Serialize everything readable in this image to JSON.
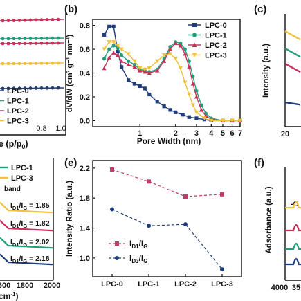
{
  "colors": {
    "lpc0": "#1f3c7a",
    "lpc1": "#1f9e7a",
    "lpc2": "#c8305a",
    "lpc3": "#f2c13b",
    "dash_pink": "#c23a6b",
    "dash_navy": "#1f3c7a"
  },
  "panel_a": {
    "x_axis_label": "e (p/p",
    "x_axis_label_sub": "0",
    "x_axis_label_close": ")",
    "x_ticks": [
      "0.8",
      "1.0"
    ],
    "legend": [
      "LPC-0",
      "LPC-1",
      "LPC-2",
      "LPC-3"
    ]
  },
  "panel_b": {
    "letter": "(b)",
    "x_axis_label": "Pore Width (nm)",
    "y_axis_label": "dV/dW (cm³ g⁻¹ nm⁻¹)",
    "legend": [
      "LPC-0",
      "LPC-1",
      "LPC-2",
      "LPC-3"
    ]
  },
  "panel_c": {
    "letter": "(c)",
    "y_axis_label": "Intensity (a.u.)",
    "x_ticks": [
      "20"
    ]
  },
  "panel_d": {
    "legend": [
      "LPC-1",
      "LPC-3"
    ],
    "band_label": "band",
    "x_axis_label": "cm",
    "x_axis_label_sup": "-1",
    "x_axis_label_close": ")",
    "x_ticks": [
      "600",
      "1800",
      "2000"
    ],
    "ratios": [
      {
        "text": "I",
        "sub1": "D1",
        "mid": "/I",
        "sub2": "G",
        "value": " = 1.85",
        "color": "#f2c13b"
      },
      {
        "text": "I",
        "sub1": "D1",
        "mid": "/I",
        "sub2": "G",
        "value": " = 1.82",
        "color": "#c8305a"
      },
      {
        "text": "I",
        "sub1": "D1",
        "mid": "/I",
        "sub2": "G",
        "value": " = 2.02",
        "color": "#1f9e7a"
      },
      {
        "text": "I",
        "sub1": "D1",
        "mid": "/I",
        "sub2": "G",
        "value": " = 2.18",
        "color": "#1f3c7a"
      }
    ]
  },
  "panel_e": {
    "letter": "(e)",
    "y_axis_label": "Intensity Ratio (a.u.)",
    "legend": [
      {
        "main": "I",
        "sub1": "D1",
        "mid": "/I",
        "sub2": "G"
      },
      {
        "main": "I",
        "sub1": "D3",
        "mid": "/I",
        "sub2": "G"
      }
    ]
  },
  "panel_f": {
    "letter": "(f)",
    "y_axis_label": "Adsorbance (a.u.)",
    "x_ticks": [
      "4000",
      "35"
    ],
    "partial_label": "-C"
  },
  "chart_data": [
    {
      "type": "line",
      "panel": "b",
      "x_scale": "log",
      "xlabel": "Pore Width (nm)",
      "ylabel": "dV/dW (cm³ g⁻¹ nm⁻¹)",
      "xlim": [
        0.4,
        7
      ],
      "ylim": [
        -0.05,
        0.85
      ],
      "x_tick_labels": [
        "1",
        "2",
        "3",
        "4",
        "5",
        "6",
        "7"
      ],
      "y_tick_labels": [
        "0.0",
        "0.2",
        "0.4",
        "0.6",
        "0.8"
      ],
      "legend_position": "top-right",
      "series": [
        {
          "name": "LPC-0",
          "x": [
            0.5,
            0.55,
            0.6,
            0.65,
            0.7,
            0.8,
            0.9,
            1.0,
            1.1,
            1.2,
            1.4,
            1.6,
            1.8,
            2.0,
            2.3,
            2.6,
            3.0,
            3.5,
            4.0,
            5.0,
            6.0,
            7.0
          ],
          "y": [
            0.72,
            0.79,
            0.79,
            0.58,
            0.45,
            0.34,
            0.31,
            0.29,
            0.27,
            0.22,
            0.16,
            0.12,
            0.09,
            0.07,
            0.05,
            0.03,
            0.02,
            0.01,
            0.0,
            0.0,
            0.0,
            0.0
          ]
        },
        {
          "name": "LPC-1",
          "x": [
            0.5,
            0.55,
            0.6,
            0.65,
            0.7,
            0.8,
            0.9,
            1.0,
            1.1,
            1.2,
            1.4,
            1.6,
            1.8,
            2.0,
            2.2,
            2.4,
            2.6,
            2.8,
            3.0,
            3.3,
            3.6,
            4.0,
            5.0,
            6.0,
            7.0
          ],
          "y": [
            0.52,
            0.6,
            0.63,
            0.61,
            0.55,
            0.5,
            0.47,
            0.43,
            0.42,
            0.41,
            0.43,
            0.52,
            0.62,
            0.66,
            0.65,
            0.6,
            0.5,
            0.37,
            0.25,
            0.13,
            0.06,
            0.02,
            0.0,
            0.0,
            0.0
          ]
        },
        {
          "name": "LPC-2",
          "x": [
            0.5,
            0.55,
            0.6,
            0.65,
            0.7,
            0.8,
            0.9,
            1.0,
            1.1,
            1.2,
            1.4,
            1.6,
            1.8,
            2.0,
            2.2,
            2.4,
            2.6,
            2.8,
            3.0,
            3.3,
            3.6,
            4.0,
            5.0,
            6.0,
            7.0
          ],
          "y": [
            0.44,
            0.53,
            0.57,
            0.55,
            0.5,
            0.47,
            0.45,
            0.42,
            0.41,
            0.4,
            0.42,
            0.5,
            0.6,
            0.65,
            0.63,
            0.56,
            0.45,
            0.31,
            0.2,
            0.09,
            0.04,
            0.01,
            0.0,
            0.0,
            0.0
          ]
        },
        {
          "name": "LPC-3",
          "x": [
            0.5,
            0.55,
            0.6,
            0.65,
            0.7,
            0.8,
            0.9,
            1.0,
            1.1,
            1.2,
            1.4,
            1.6,
            1.8,
            2.0,
            2.2,
            2.4,
            2.6,
            2.8,
            3.0,
            3.5,
            4.0,
            5.0,
            6.0,
            7.0
          ],
          "y": [
            0.6,
            0.66,
            0.66,
            0.63,
            0.6,
            0.56,
            0.5,
            0.44,
            0.43,
            0.44,
            0.5,
            0.55,
            0.56,
            0.52,
            0.44,
            0.32,
            0.22,
            0.13,
            0.07,
            0.02,
            0.0,
            0.0,
            0.0,
            0.0
          ]
        }
      ]
    },
    {
      "type": "line",
      "panel": "e",
      "categories": [
        "LPC-0",
        "LPC-1",
        "LPC-2",
        "LPC-3"
      ],
      "ylabel": "Intensity Ratio (a.u.)",
      "ylim": [
        0.75,
        2.3
      ],
      "y_tick_labels": [
        "1.0",
        "1.4",
        "1.8",
        "2.2"
      ],
      "legend_position": "bottom-left",
      "series": [
        {
          "name": "ID1/IG",
          "values": [
            2.18,
            2.02,
            1.82,
            1.85
          ]
        },
        {
          "name": "ID3/IG",
          "values": [
            1.65,
            1.43,
            1.45,
            0.85
          ]
        }
      ]
    }
  ]
}
